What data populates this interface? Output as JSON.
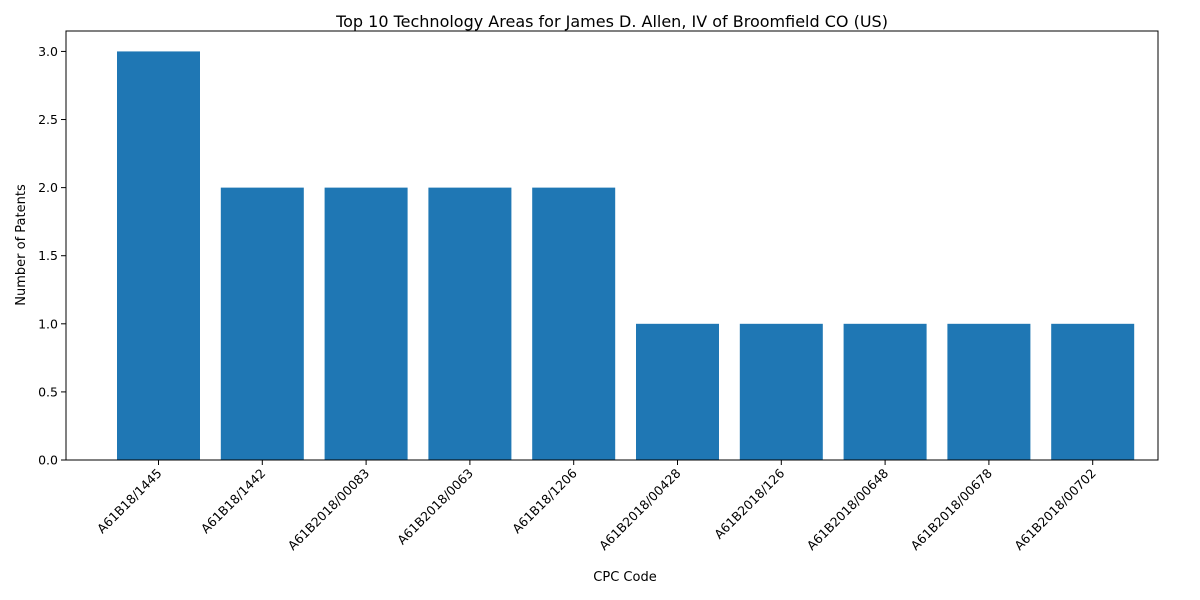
{
  "chart_data": {
    "type": "bar",
    "title": "Top 10 Technology Areas for James D. Allen, IV of Broomfield CO (US)",
    "xlabel": "CPC Code",
    "ylabel": "Number of Patents",
    "categories": [
      "A61B18/1445",
      "A61B18/1442",
      "A61B2018/00083",
      "A61B2018/0063",
      "A61B18/1206",
      "A61B2018/00428",
      "A61B2018/126",
      "A61B2018/00648",
      "A61B2018/00678",
      "A61B2018/00702"
    ],
    "values": [
      3,
      2,
      2,
      2,
      2,
      1,
      1,
      1,
      1,
      1
    ],
    "ylim": [
      0,
      3.15
    ],
    "yticks": [
      0.0,
      0.5,
      1.0,
      1.5,
      2.0,
      2.5,
      3.0
    ],
    "ytick_labels": [
      "0.0",
      "0.5",
      "1.0",
      "1.5",
      "2.0",
      "2.5",
      "3.0"
    ],
    "bar_color": "#1f77b4",
    "grid": false,
    "legend": false
  }
}
